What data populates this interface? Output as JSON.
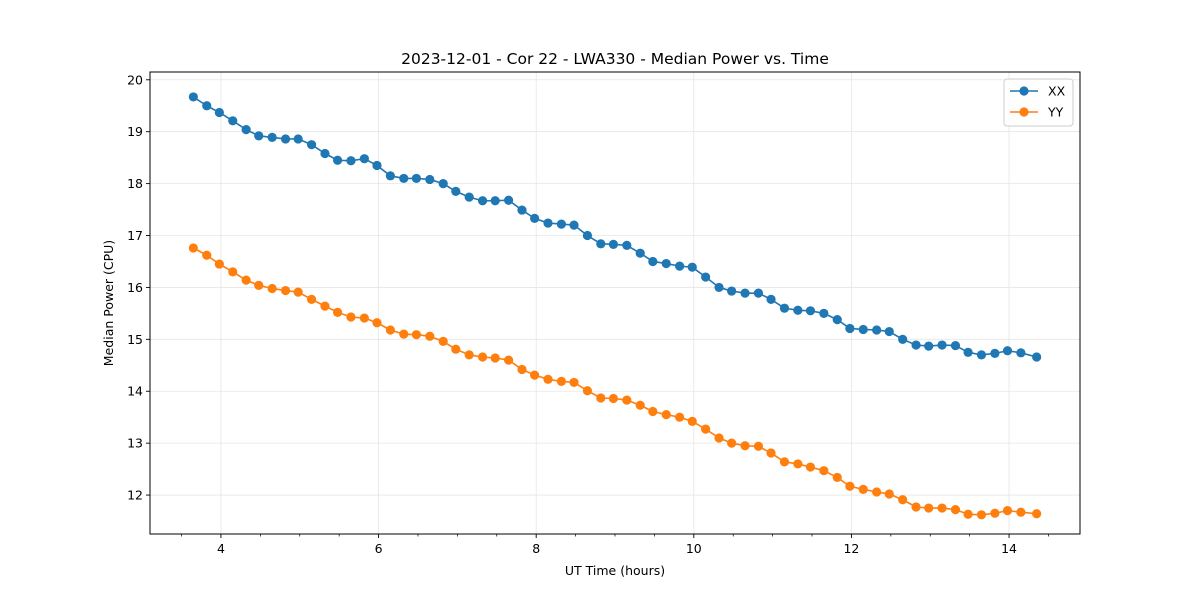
{
  "chart_data": {
    "type": "line",
    "title": "2023-12-01 - Cor 22 - LWA330 - Median Power vs. Time",
    "xlabel": "UT Time (hours)",
    "ylabel": "Median Power (CPU)",
    "xlim": [
      3.1,
      14.9
    ],
    "ylim": [
      11.25,
      20.15
    ],
    "xticks": [
      4,
      6,
      8,
      10,
      12,
      14
    ],
    "xticklabels": [
      "4",
      "6",
      "8",
      "10",
      "12",
      "14"
    ],
    "xminorticks": [
      3.5,
      4.5,
      5,
      5.5,
      6.5,
      7,
      7.5,
      8.5,
      9,
      9.5,
      10.5,
      11,
      11.5,
      12.5,
      13,
      13.5,
      14.5
    ],
    "yticks": [
      12,
      13,
      14,
      15,
      16,
      17,
      18,
      19,
      20
    ],
    "yticklabels": [
      "12",
      "13",
      "14",
      "15",
      "16",
      "17",
      "18",
      "19",
      "20"
    ],
    "grid": true,
    "legend_position": "top-right",
    "x": [
      3.65,
      3.82,
      3.98,
      4.15,
      4.32,
      4.48,
      4.65,
      4.82,
      4.98,
      5.15,
      5.32,
      5.48,
      5.65,
      5.82,
      5.98,
      6.15,
      6.32,
      6.48,
      6.65,
      6.82,
      6.98,
      7.15,
      7.32,
      7.48,
      7.65,
      7.82,
      7.98,
      8.15,
      8.32,
      8.48,
      8.65,
      8.82,
      8.98,
      9.15,
      9.32,
      9.48,
      9.65,
      9.82,
      9.98,
      10.15,
      10.32,
      10.48,
      10.65,
      10.82,
      10.98,
      11.15,
      11.32,
      11.48,
      11.65,
      11.82,
      11.98,
      12.15,
      12.32,
      12.48,
      12.65,
      12.82,
      12.98,
      13.15,
      13.32,
      13.48,
      13.65,
      13.82,
      13.98,
      14.15,
      14.35
    ],
    "series": [
      {
        "name": "XX",
        "color": "#1f77b4",
        "values": [
          19.67,
          19.5,
          19.37,
          19.21,
          19.04,
          18.92,
          18.89,
          18.86,
          18.86,
          18.75,
          18.58,
          18.45,
          18.44,
          18.48,
          18.35,
          18.15,
          18.1,
          18.1,
          18.08,
          18.0,
          17.85,
          17.74,
          17.67,
          17.67,
          17.68,
          17.49,
          17.33,
          17.24,
          17.22,
          17.2,
          17.0,
          16.84,
          16.83,
          16.81,
          16.66,
          16.5,
          16.46,
          16.41,
          16.39,
          16.2,
          16.0,
          15.93,
          15.89,
          15.89,
          15.77,
          15.6,
          15.56,
          15.55,
          15.5,
          15.38,
          15.21,
          15.19,
          15.18,
          15.15,
          15.0,
          14.89,
          14.87,
          14.89,
          14.88,
          14.75,
          14.7,
          14.73,
          14.78,
          14.74,
          14.66
        ]
      },
      {
        "name": "YY",
        "color": "#ff7f0e",
        "values": [
          16.76,
          16.62,
          16.45,
          16.3,
          16.14,
          16.04,
          15.98,
          15.94,
          15.91,
          15.77,
          15.64,
          15.52,
          15.43,
          15.41,
          15.32,
          15.18,
          15.1,
          15.09,
          15.06,
          14.96,
          14.81,
          14.7,
          14.66,
          14.64,
          14.6,
          14.42,
          14.31,
          14.23,
          14.19,
          14.17,
          14.01,
          13.87,
          13.86,
          13.83,
          13.73,
          13.61,
          13.55,
          13.5,
          13.42,
          13.27,
          13.1,
          13.0,
          12.95,
          12.94,
          12.81,
          12.64,
          12.6,
          12.54,
          12.47,
          12.34,
          12.17,
          12.11,
          12.06,
          12.02,
          11.91,
          11.77,
          11.75,
          11.75,
          11.72,
          11.63,
          11.62,
          11.65,
          11.7,
          11.67,
          11.64
        ]
      }
    ]
  }
}
